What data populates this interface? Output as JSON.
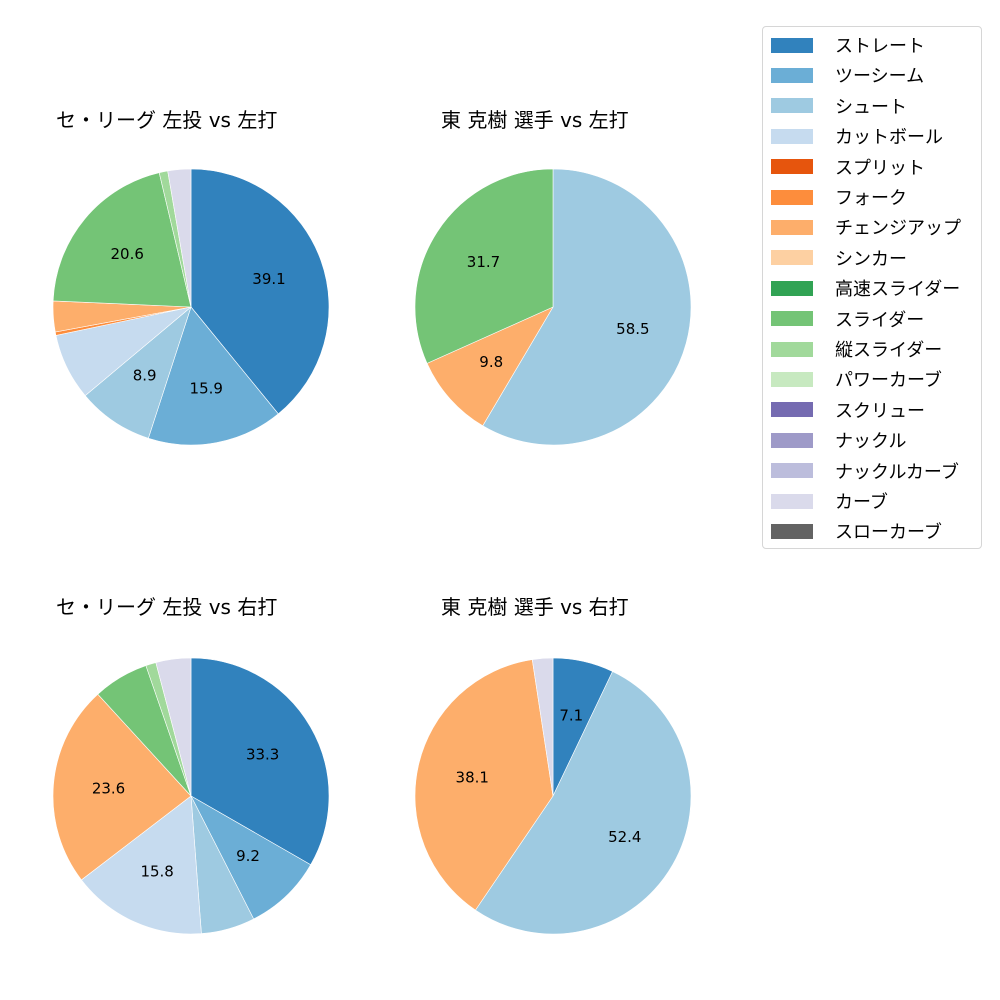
{
  "chart_data": [
    {
      "type": "pie",
      "title": "セ・リーグ 左投 vs 左打",
      "categories": [
        "ストレート",
        "ツーシーム",
        "シュート",
        "カットボール",
        "フォーク",
        "チェンジアップ",
        "スライダー",
        "縦スライダー",
        "カーブ"
      ],
      "values": [
        39.1,
        15.9,
        8.9,
        7.8,
        0.4,
        3.6,
        20.6,
        1.0,
        2.7
      ],
      "labels_shown": [
        "39.1",
        "15.9",
        "8.9",
        "",
        "",
        "",
        "20.6",
        "",
        ""
      ]
    },
    {
      "type": "pie",
      "title": "東 克樹 選手 vs 左打",
      "categories": [
        "シュート",
        "チェンジアップ",
        "スライダー"
      ],
      "values": [
        58.5,
        9.8,
        31.7
      ],
      "labels_shown": [
        "58.5",
        "9.8",
        "31.7"
      ]
    },
    {
      "type": "pie",
      "title": "セ・リーグ 左投 vs 右打",
      "categories": [
        "ストレート",
        "ツーシーム",
        "シュート",
        "カットボール",
        "チェンジアップ",
        "スライダー",
        "縦スライダー",
        "カーブ"
      ],
      "values": [
        33.3,
        9.2,
        6.3,
        15.8,
        23.6,
        6.5,
        1.2,
        4.1
      ],
      "labels_shown": [
        "33.3",
        "9.2",
        "",
        "15.8",
        "23.6",
        "",
        "",
        ""
      ]
    },
    {
      "type": "pie",
      "title": "東 克樹 選手 vs 右打",
      "categories": [
        "ストレート",
        "シュート",
        "チェンジアップ",
        "カーブ"
      ],
      "values": [
        7.1,
        52.4,
        38.1,
        2.4
      ],
      "labels_shown": [
        "7.1",
        "52.4",
        "38.1",
        ""
      ]
    }
  ],
  "panels": [
    {
      "title": "セ・リーグ 左投 vs 左打"
    },
    {
      "title": "東 克樹 選手 vs 左打"
    },
    {
      "title": "セ・リーグ 左投 vs 右打"
    },
    {
      "title": "東 克樹 選手 vs 右打"
    }
  ],
  "legend": {
    "items": [
      {
        "label": "ストレート",
        "color": "#3182bd"
      },
      {
        "label": "ツーシーム",
        "color": "#6baed6"
      },
      {
        "label": "シュート",
        "color": "#9ecae1"
      },
      {
        "label": "カットボール",
        "color": "#c6dbef"
      },
      {
        "label": "スプリット",
        "color": "#e6550d"
      },
      {
        "label": "フォーク",
        "color": "#fd8d3c"
      },
      {
        "label": "チェンジアップ",
        "color": "#fdae6b"
      },
      {
        "label": "シンカー",
        "color": "#fdd0a2"
      },
      {
        "label": "高速スライダー",
        "color": "#31a354"
      },
      {
        "label": "スライダー",
        "color": "#74c476"
      },
      {
        "label": "縦スライダー",
        "color": "#a1d99b"
      },
      {
        "label": "パワーカーブ",
        "color": "#c7e9c0"
      },
      {
        "label": "スクリュー",
        "color": "#756bb1"
      },
      {
        "label": "ナックル",
        "color": "#9e9ac8"
      },
      {
        "label": "ナックルカーブ",
        "color": "#bcbddc"
      },
      {
        "label": "カーブ",
        "color": "#dadaeb"
      },
      {
        "label": "スローカーブ",
        "color": "#636363"
      }
    ]
  }
}
